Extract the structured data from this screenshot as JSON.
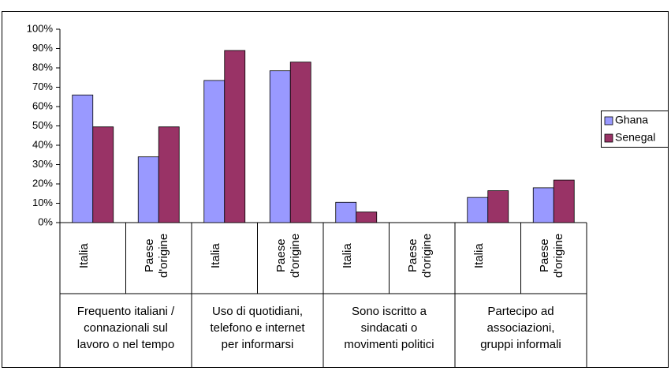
{
  "chart_data": {
    "type": "bar",
    "categories": [
      "Italia",
      "Paese d'origine",
      "Italia",
      "Paese d'origine",
      "Italia",
      "Paese d'origine",
      "Italia",
      "Paese d'origine"
    ],
    "groups": [
      [
        "Frequento italiani /",
        "connazionali sul",
        "lavoro o nel tempo"
      ],
      [
        "Uso di quotidiani,",
        "telefono e internet",
        "per informarsi"
      ],
      [
        "Sono iscritto a",
        "sindacati o",
        "movimenti politici"
      ],
      [
        "Partecipo ad",
        "associazioni,",
        "gruppi informali"
      ]
    ],
    "series": [
      {
        "name": "Ghana",
        "color": "#9999ff",
        "values": [
          66,
          34,
          73.5,
          78.5,
          10.5,
          null,
          13,
          18
        ]
      },
      {
        "name": "Senegal",
        "color": "#993366",
        "values": [
          49.5,
          49.5,
          89,
          83,
          5.5,
          null,
          16.5,
          22
        ]
      }
    ],
    "ylim": [
      0,
      100
    ],
    "yticks": [
      {
        "value": 0,
        "label": "0%"
      },
      {
        "value": 10,
        "label": "10%"
      },
      {
        "value": 20,
        "label": "20%"
      },
      {
        "value": 30,
        "label": "30%"
      },
      {
        "value": 40,
        "label": "40%"
      },
      {
        "value": 50,
        "label": "50%"
      },
      {
        "value": 60,
        "label": "60%"
      },
      {
        "value": 70,
        "label": "70%"
      },
      {
        "value": 80,
        "label": "80%"
      },
      {
        "value": 90,
        "label": "90%"
      },
      {
        "value": 100,
        "label": "100%"
      }
    ],
    "grid": false,
    "legend": "right"
  }
}
